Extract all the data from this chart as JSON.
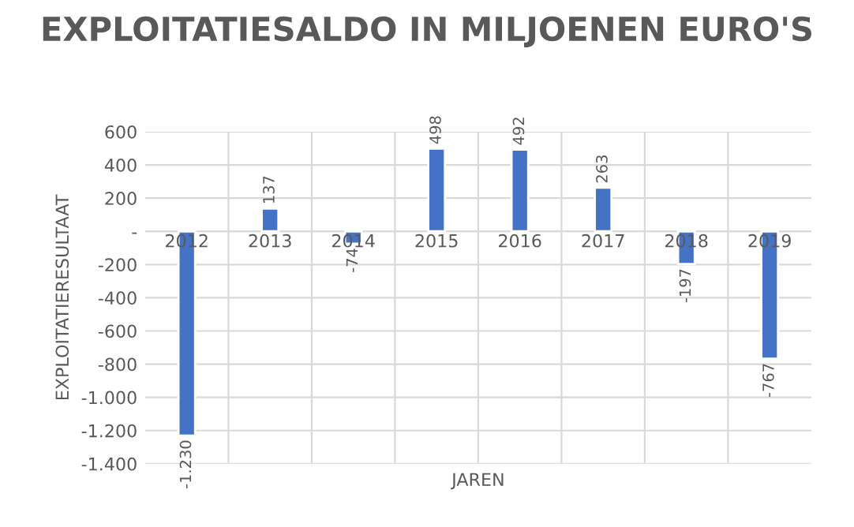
{
  "chart_data": {
    "type": "bar",
    "title": "EXPLOITATIESALDO IN MILJOENEN EURO'S",
    "xlabel": "JAREN",
    "ylabel": "EXPLOITATIERESULTAAT",
    "categories": [
      "2012",
      "2013",
      "2014",
      "2015",
      "2016",
      "2017",
      "2018",
      "2019"
    ],
    "values": [
      -1230,
      137,
      -74,
      498,
      492,
      263,
      -197,
      -767
    ],
    "value_labels": [
      "-1.230",
      "137",
      "-74",
      "498",
      "492",
      "263",
      "-197",
      "-767"
    ],
    "color": "#4472c4",
    "ylim": [
      -1400,
      600
    ],
    "yticks": [
      600,
      400,
      200,
      {
        "value": 0,
        "label": "-"
      },
      -200,
      -400,
      -600,
      -800,
      {
        "value": -1000,
        "label": "-1.000"
      },
      {
        "value": -1200,
        "label": "-1.200"
      },
      {
        "value": -1400,
        "label": "-1.400"
      }
    ],
    "grid": true
  }
}
